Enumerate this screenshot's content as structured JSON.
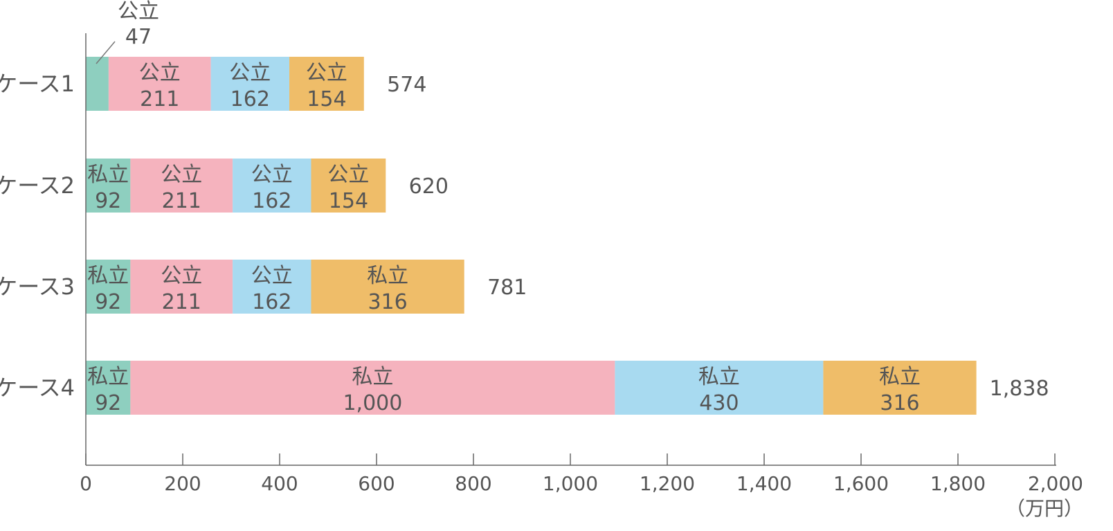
{
  "chart_data": {
    "type": "bar",
    "orientation": "horizontal",
    "stacked": true,
    "categories": [
      "ケース1",
      "ケース2",
      "ケース3",
      "ケース4"
    ],
    "series": [
      {
        "color": "#8ecfbf",
        "values": [
          47,
          92,
          92,
          92
        ],
        "labels": [
          "公立",
          "私立",
          "私立",
          "私立"
        ]
      },
      {
        "color": "#f5b3be",
        "values": [
          211,
          211,
          211,
          1000
        ],
        "labels": [
          "公立",
          "公立",
          "公立",
          "私立"
        ]
      },
      {
        "color": "#a8daf0",
        "values": [
          162,
          162,
          162,
          430
        ],
        "labels": [
          "公立",
          "公立",
          "公立",
          "私立"
        ]
      },
      {
        "color": "#efbd69",
        "values": [
          154,
          154,
          316,
          316
        ],
        "labels": [
          "公立",
          "公立",
          "私立",
          "私立"
        ]
      }
    ],
    "value_labels": [
      [
        "47",
        "92",
        "92",
        "92"
      ],
      [
        "211",
        "211",
        "211",
        "1,000"
      ],
      [
        "162",
        "162",
        "162",
        "430"
      ],
      [
        "154",
        "154",
        "316",
        "316"
      ]
    ],
    "totals": [
      "574",
      "620",
      "781",
      "1,838"
    ],
    "xlim": [
      0,
      2000
    ],
    "xticks": [
      0,
      200,
      400,
      600,
      800,
      1000,
      1200,
      1400,
      1600,
      1800,
      2000
    ],
    "xtick_labels": [
      "0",
      "200",
      "400",
      "600",
      "800",
      "1,000",
      "1,200",
      "1,400",
      "1,600",
      "1,800",
      "2,000"
    ],
    "unit": "（万円）",
    "grid": false,
    "legend": "none"
  }
}
